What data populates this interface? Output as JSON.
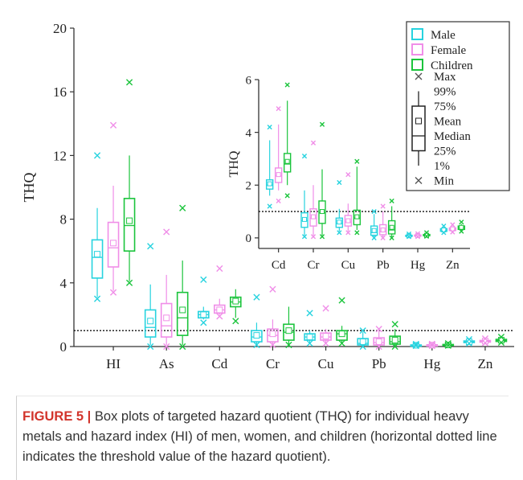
{
  "colors": {
    "male": "#27d3df",
    "female": "#f08ee8",
    "children": "#1bc43c",
    "axis": "#333333",
    "marker": "#555555"
  },
  "caption": {
    "label": "FIGURE 5 |",
    "text": "Box plots of targeted hazard quotient (THQ) for individual heavy metals and hazard index (HI) of men, women, and children (horizontal dotted line indicates the threshold value of the hazard quotient)."
  },
  "legend": {
    "series": [
      "Male",
      "Female",
      "Children"
    ],
    "stats": [
      "Max",
      "99%",
      "75%",
      "Mean",
      "Median",
      "25%",
      "1%",
      "Min"
    ]
  },
  "chart_data": [
    {
      "type": "box",
      "ylabel": "THQ",
      "ylim": [
        0,
        20
      ],
      "yticks": [
        0,
        4,
        8,
        12,
        16,
        20
      ],
      "threshold": 1,
      "categories": [
        "HI",
        "As",
        "Cd",
        "Cr",
        "Cu",
        "Pb",
        "Hg",
        "Zn"
      ],
      "series": [
        {
          "name": "Male",
          "boxes": [
            {
              "min": 3.0,
              "p1": 3.1,
              "q1": 4.3,
              "median": 5.6,
              "mean": 5.8,
              "q3": 6.7,
              "p99": 8.7,
              "max": 12.0
            },
            {
              "min": 0.0,
              "p1": 0.1,
              "q1": 0.6,
              "median": 1.2,
              "mean": 1.6,
              "q3": 2.3,
              "p99": 3.9,
              "max": 6.3
            },
            {
              "min": 1.5,
              "p1": 1.7,
              "q1": 1.8,
              "median": 2.0,
              "mean": 2.0,
              "q3": 2.2,
              "p99": 2.5,
              "max": 4.2
            },
            {
              "min": 0.1,
              "p1": 0.1,
              "q1": 0.3,
              "median": 0.6,
              "mean": 0.7,
              "q3": 1.0,
              "p99": 1.5,
              "max": 3.1
            },
            {
              "min": 0.2,
              "p1": 0.2,
              "q1": 0.4,
              "median": 0.6,
              "mean": 0.6,
              "q3": 0.8,
              "p99": 1.0,
              "max": 2.1
            },
            {
              "min": 0.0,
              "p1": 0.0,
              "q1": 0.1,
              "median": 0.2,
              "mean": 0.3,
              "q3": 0.5,
              "p99": 0.9,
              "max": 1.0
            },
            {
              "min": 0.05,
              "p1": 0.05,
              "q1": 0.07,
              "median": 0.08,
              "mean": 0.08,
              "q3": 0.1,
              "p99": 0.12,
              "max": 0.15
            },
            {
              "min": 0.2,
              "p1": 0.22,
              "q1": 0.25,
              "median": 0.3,
              "mean": 0.3,
              "q3": 0.35,
              "p99": 0.4,
              "max": 0.45
            }
          ]
        },
        {
          "name": "Female",
          "boxes": [
            {
              "min": 3.4,
              "p1": 3.5,
              "q1": 5.0,
              "median": 6.2,
              "mean": 6.5,
              "q3": 7.8,
              "p99": 10.1,
              "max": 13.9
            },
            {
              "min": 0.0,
              "p1": 0.1,
              "q1": 0.6,
              "median": 1.3,
              "mean": 1.8,
              "q3": 2.7,
              "p99": 4.5,
              "max": 7.2
            },
            {
              "min": 1.9,
              "p1": 2.0,
              "q1": 2.1,
              "median": 2.3,
              "mean": 2.3,
              "q3": 2.6,
              "p99": 3.0,
              "max": 4.9
            },
            {
              "min": 0.1,
              "p1": 0.1,
              "q1": 0.3,
              "median": 0.7,
              "mean": 0.8,
              "q3": 1.1,
              "p99": 1.7,
              "max": 3.6
            },
            {
              "min": 0.2,
              "p1": 0.2,
              "q1": 0.4,
              "median": 0.6,
              "mean": 0.65,
              "q3": 0.85,
              "p99": 1.1,
              "max": 2.4
            },
            {
              "min": 0.0,
              "p1": 0.0,
              "q1": 0.1,
              "median": 0.25,
              "mean": 0.3,
              "q3": 0.55,
              "p99": 1.0,
              "max": 1.1
            },
            {
              "min": 0.05,
              "p1": 0.05,
              "q1": 0.07,
              "median": 0.09,
              "mean": 0.09,
              "q3": 0.11,
              "p99": 0.13,
              "max": 0.16
            },
            {
              "min": 0.22,
              "p1": 0.24,
              "q1": 0.28,
              "median": 0.33,
              "mean": 0.34,
              "q3": 0.38,
              "p99": 0.44,
              "max": 0.5
            }
          ]
        },
        {
          "name": "Children",
          "boxes": [
            {
              "min": 4.0,
              "p1": 4.1,
              "q1": 6.0,
              "median": 7.6,
              "mean": 7.9,
              "q3": 9.3,
              "p99": 12.0,
              "max": 16.6
            },
            {
              "min": 0.0,
              "p1": 0.1,
              "q1": 0.7,
              "median": 1.8,
              "mean": 2.3,
              "q3": 3.4,
              "p99": 5.4,
              "max": 8.7
            },
            {
              "min": 1.6,
              "p1": 1.8,
              "q1": 2.5,
              "median": 2.8,
              "mean": 2.85,
              "q3": 3.1,
              "p99": 3.6,
              "max": 5.8
            },
            {
              "min": 0.1,
              "p1": 0.1,
              "q1": 0.4,
              "median": 0.9,
              "mean": 1.0,
              "q3": 1.4,
              "p99": 2.5,
              "max": 4.3
            },
            {
              "min": 0.2,
              "p1": 0.2,
              "q1": 0.4,
              "median": 0.8,
              "mean": 0.8,
              "q3": 1.0,
              "p99": 1.3,
              "max": 2.9
            },
            {
              "min": 0.0,
              "p1": 0.0,
              "q1": 0.15,
              "median": 0.3,
              "mean": 0.4,
              "q3": 0.65,
              "p99": 1.1,
              "max": 1.4
            },
            {
              "min": 0.06,
              "p1": 0.06,
              "q1": 0.08,
              "median": 0.1,
              "mean": 0.1,
              "q3": 0.13,
              "p99": 0.16,
              "max": 0.2
            },
            {
              "min": 0.25,
              "p1": 0.27,
              "q1": 0.32,
              "median": 0.38,
              "mean": 0.4,
              "q3": 0.45,
              "p99": 0.52,
              "max": 0.6
            }
          ]
        }
      ]
    },
    {
      "type": "box",
      "ylabel": "THQ",
      "ylim": [
        -0.4,
        6
      ],
      "yticks": [
        0,
        2,
        4,
        6
      ],
      "threshold": 1,
      "categories": [
        "Cd",
        "Cr",
        "Cu",
        "Pb",
        "Hg",
        "Zn"
      ],
      "series": [
        {
          "name": "Male",
          "boxes": [
            {
              "min": 1.2,
              "p1": 1.6,
              "q1": 1.85,
              "median": 2.0,
              "mean": 2.05,
              "q3": 2.2,
              "p99": 3.7,
              "max": 4.2
            },
            {
              "min": 0.05,
              "p1": 0.1,
              "q1": 0.4,
              "median": 0.65,
              "mean": 0.7,
              "q3": 0.95,
              "p99": 1.8,
              "max": 3.1
            },
            {
              "min": 0.2,
              "p1": 0.25,
              "q1": 0.4,
              "median": 0.55,
              "mean": 0.6,
              "q3": 0.75,
              "p99": 1.1,
              "max": 2.1
            },
            {
              "min": 0.0,
              "p1": 0.0,
              "q1": 0.1,
              "median": 0.2,
              "mean": 0.28,
              "q3": 0.45,
              "p99": 0.9,
              "max": 1.0
            },
            {
              "min": 0.05,
              "p1": 0.05,
              "q1": 0.07,
              "median": 0.08,
              "mean": 0.08,
              "q3": 0.1,
              "p99": 0.12,
              "max": 0.15
            },
            {
              "min": 0.2,
              "p1": 0.22,
              "q1": 0.25,
              "median": 0.3,
              "mean": 0.3,
              "q3": 0.35,
              "p99": 0.4,
              "max": 0.45
            }
          ]
        },
        {
          "name": "Female",
          "boxes": [
            {
              "min": 1.4,
              "p1": 1.8,
              "q1": 2.1,
              "median": 2.35,
              "mean": 2.4,
              "q3": 2.65,
              "p99": 4.3,
              "max": 4.9
            },
            {
              "min": 0.05,
              "p1": 0.1,
              "q1": 0.45,
              "median": 0.75,
              "mean": 0.8,
              "q3": 1.1,
              "p99": 2.0,
              "max": 3.6
            },
            {
              "min": 0.2,
              "p1": 0.25,
              "q1": 0.45,
              "median": 0.6,
              "mean": 0.65,
              "q3": 0.85,
              "p99": 1.3,
              "max": 2.4
            },
            {
              "min": 0.0,
              "p1": 0.0,
              "q1": 0.12,
              "median": 0.25,
              "mean": 0.3,
              "q3": 0.5,
              "p99": 1.0,
              "max": 1.2
            },
            {
              "min": 0.05,
              "p1": 0.05,
              "q1": 0.07,
              "median": 0.09,
              "mean": 0.09,
              "q3": 0.11,
              "p99": 0.13,
              "max": 0.16
            },
            {
              "min": 0.22,
              "p1": 0.24,
              "q1": 0.28,
              "median": 0.33,
              "mean": 0.34,
              "q3": 0.38,
              "p99": 0.44,
              "max": 0.5
            }
          ]
        },
        {
          "name": "Children",
          "boxes": [
            {
              "min": 1.6,
              "p1": 2.0,
              "q1": 2.5,
              "median": 2.8,
              "mean": 2.9,
              "q3": 3.2,
              "p99": 5.2,
              "max": 5.8
            },
            {
              "min": 0.05,
              "p1": 0.1,
              "q1": 0.55,
              "median": 0.95,
              "mean": 1.0,
              "q3": 1.4,
              "p99": 2.6,
              "max": 4.3
            },
            {
              "min": 0.2,
              "p1": 0.3,
              "q1": 0.5,
              "median": 0.75,
              "mean": 0.8,
              "q3": 1.05,
              "p99": 2.7,
              "max": 2.9
            },
            {
              "min": 0.0,
              "p1": 0.0,
              "q1": 0.15,
              "median": 0.3,
              "mean": 0.4,
              "q3": 0.65,
              "p99": 1.2,
              "max": 1.4
            },
            {
              "min": 0.06,
              "p1": 0.06,
              "q1": 0.08,
              "median": 0.1,
              "mean": 0.1,
              "q3": 0.13,
              "p99": 0.16,
              "max": 0.2
            },
            {
              "min": 0.25,
              "p1": 0.27,
              "q1": 0.32,
              "median": 0.38,
              "mean": 0.4,
              "q3": 0.45,
              "p99": 0.52,
              "max": 0.6
            }
          ]
        }
      ]
    }
  ]
}
